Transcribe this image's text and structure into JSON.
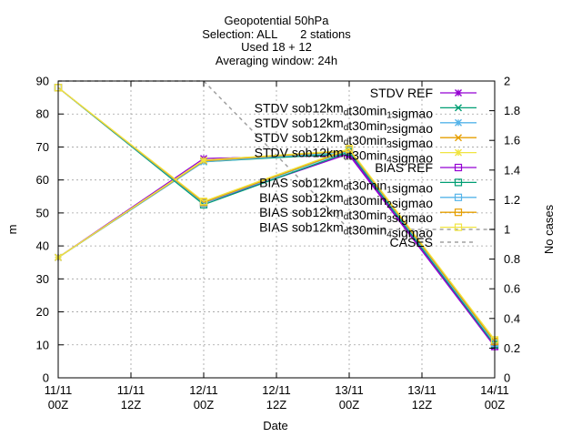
{
  "chart_data": {
    "type": "line",
    "title_lines": [
      "Geopotential 50hPa",
      "Selection: ALL       2 stations",
      "Used 18 + 12",
      "Averaging window: 24h"
    ],
    "xlabel": "Date",
    "ylabel": "m",
    "y2label": "No cases",
    "x_ticks": [
      {
        "pos": 0,
        "line1": "11/11",
        "line2": "00Z"
      },
      {
        "pos": 1,
        "line1": "11/11",
        "line2": "12Z"
      },
      {
        "pos": 2,
        "line1": "12/11",
        "line2": "00Z"
      },
      {
        "pos": 3,
        "line1": "12/11",
        "line2": "12Z"
      },
      {
        "pos": 4,
        "line1": "13/11",
        "line2": "00Z"
      },
      {
        "pos": 5,
        "line1": "13/11",
        "line2": "12Z"
      },
      {
        "pos": 6,
        "line1": "14/11",
        "line2": "00Z"
      }
    ],
    "y_ticks": [
      "0",
      "10",
      "20",
      "30",
      "40",
      "50",
      "60",
      "70",
      "80",
      "90"
    ],
    "y2_ticks": [
      "0",
      "0.2",
      "0.4",
      "0.6",
      "0.8",
      "1",
      "1.2",
      "1.4",
      "1.6",
      "1.8",
      "2"
    ],
    "ylim": [
      0,
      90
    ],
    "y2lim": [
      0,
      2
    ],
    "grid": true,
    "legend_position": "top-right",
    "series": [
      {
        "name": "STDV REF",
        "name_parts": [
          [
            "STDV REF",
            ""
          ]
        ],
        "axis": "y",
        "color": "#9400d3",
        "marker": "star",
        "x": [
          0,
          2,
          4,
          6
        ],
        "values": [
          36.5,
          66.5,
          67.5,
          9.5
        ]
      },
      {
        "name": "STDV sob12km_dt30min_1sigmao",
        "name_parts": [
          [
            "STDV sob12km",
            ""
          ],
          [
            "d",
            "sub"
          ],
          [
            "t30min",
            ""
          ],
          [
            "1",
            "sub"
          ],
          [
            "sigmao",
            ""
          ]
        ],
        "axis": "y",
        "color": "#009e73",
        "marker": "x",
        "x": [
          0,
          2,
          4,
          6
        ],
        "values": [
          36.5,
          65.5,
          68.0,
          10.0
        ]
      },
      {
        "name": "STDV sob12km_dt30min_2sigmao",
        "name_parts": [
          [
            "STDV sob12km",
            ""
          ],
          [
            "d",
            "sub"
          ],
          [
            "t30min",
            ""
          ],
          [
            "2",
            "sub"
          ],
          [
            "sigmao",
            ""
          ]
        ],
        "axis": "y",
        "color": "#56b4e9",
        "marker": "star",
        "x": [
          0,
          2,
          4,
          6
        ],
        "values": [
          36.5,
          65.5,
          68.5,
          10.5
        ]
      },
      {
        "name": "STDV sob12km_dt30min_3sigmao",
        "name_parts": [
          [
            "STDV sob12km",
            ""
          ],
          [
            "d",
            "sub"
          ],
          [
            "t30min",
            ""
          ],
          [
            "3",
            "sub"
          ],
          [
            "sigmao",
            ""
          ]
        ],
        "axis": "y",
        "color": "#e69f00",
        "marker": "x",
        "x": [
          0,
          2,
          4,
          6
        ],
        "values": [
          36.5,
          65.8,
          68.8,
          11.0
        ]
      },
      {
        "name": "STDV sob12km_dt30min_4sigmao",
        "name_parts": [
          [
            "STDV sob12km",
            ""
          ],
          [
            "d",
            "sub"
          ],
          [
            "t30min",
            ""
          ],
          [
            "4",
            "sub"
          ],
          [
            "sigmao",
            ""
          ]
        ],
        "axis": "y",
        "color": "#f0e442",
        "marker": "star",
        "x": [
          0,
          2,
          4,
          6
        ],
        "values": [
          36.5,
          66.0,
          69.0,
          11.5
        ]
      },
      {
        "name": "BIAS REF",
        "name_parts": [
          [
            "BIAS REF",
            ""
          ]
        ],
        "axis": "y",
        "color": "#9400d3",
        "marker": "square",
        "x": [
          0,
          2,
          4,
          6
        ],
        "values": [
          88.0,
          53.0,
          68.0,
          9.5
        ]
      },
      {
        "name": "BIAS sob12km_dt30min_1sigmao",
        "name_parts": [
          [
            "BIAS sob12km",
            ""
          ],
          [
            "d",
            "sub"
          ],
          [
            "t30min",
            ""
          ],
          [
            "1",
            "sub"
          ],
          [
            "sigmao",
            ""
          ]
        ],
        "axis": "y",
        "color": "#009e73",
        "marker": "square",
        "x": [
          0,
          2,
          4,
          6
        ],
        "values": [
          88.0,
          52.5,
          68.5,
          10.0
        ]
      },
      {
        "name": "BIAS sob12km_dt30min_2sigmao",
        "name_parts": [
          [
            "BIAS sob12km",
            ""
          ],
          [
            "d",
            "sub"
          ],
          [
            "t30min",
            ""
          ],
          [
            "2",
            "sub"
          ],
          [
            "sigmao",
            ""
          ]
        ],
        "axis": "y",
        "color": "#56b4e9",
        "marker": "square",
        "x": [
          0,
          2,
          4,
          6
        ],
        "values": [
          88.0,
          53.0,
          69.0,
          10.5
        ]
      },
      {
        "name": "BIAS sob12km_dt30min_3sigmao",
        "name_parts": [
          [
            "BIAS sob12km",
            ""
          ],
          [
            "d",
            "sub"
          ],
          [
            "t30min",
            ""
          ],
          [
            "3",
            "sub"
          ],
          [
            "sigmao",
            ""
          ]
        ],
        "axis": "y",
        "color": "#e69f00",
        "marker": "square",
        "x": [
          0,
          2,
          4,
          6
        ],
        "values": [
          88.0,
          53.2,
          69.2,
          11.0
        ]
      },
      {
        "name": "BIAS sob12km_dt30min_4sigmao",
        "name_parts": [
          [
            "BIAS sob12km",
            ""
          ],
          [
            "d",
            "sub"
          ],
          [
            "t30min",
            ""
          ],
          [
            "4",
            "sub"
          ],
          [
            "sigmao",
            ""
          ]
        ],
        "axis": "y",
        "color": "#f0e442",
        "marker": "square",
        "x": [
          0,
          2,
          4,
          6
        ],
        "values": [
          88.0,
          53.5,
          69.5,
          11.5
        ]
      },
      {
        "name": "CASES",
        "name_parts": [
          [
            "CASES",
            ""
          ]
        ],
        "axis": "y2",
        "color": "#a0a0a0",
        "marker": "none",
        "dashed": true,
        "x": [
          0,
          2,
          4,
          6
        ],
        "values": [
          2,
          2,
          1,
          1
        ]
      }
    ]
  }
}
